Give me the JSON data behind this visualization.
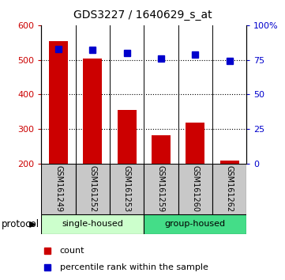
{
  "title": "GDS3227 / 1640629_s_at",
  "samples": [
    "GSM161249",
    "GSM161252",
    "GSM161253",
    "GSM161259",
    "GSM161260",
    "GSM161262"
  ],
  "counts": [
    555,
    503,
    355,
    283,
    318,
    210
  ],
  "percentile_ranks": [
    83,
    82,
    80,
    76,
    79,
    74
  ],
  "ylim_left": [
    200,
    600
  ],
  "ylim_right": [
    0,
    100
  ],
  "yticks_left": [
    200,
    300,
    400,
    500,
    600
  ],
  "yticks_right": [
    0,
    25,
    50,
    75,
    100
  ],
  "ytick_labels_right": [
    "0",
    "25",
    "50",
    "75",
    "100%"
  ],
  "bar_color": "#cc0000",
  "scatter_color": "#0000cc",
  "group_labels": [
    "single-housed",
    "group-housed"
  ],
  "group_ranges": [
    [
      0,
      3
    ],
    [
      3,
      6
    ]
  ],
  "group_colors_light": "#ccffcc",
  "group_colors_dark": "#44dd88",
  "protocol_label": "protocol",
  "bar_width": 0.55,
  "dotted_yticks": [
    300,
    400,
    500
  ],
  "legend_count_label": "count",
  "legend_pct_label": "percentile rank within the sample"
}
